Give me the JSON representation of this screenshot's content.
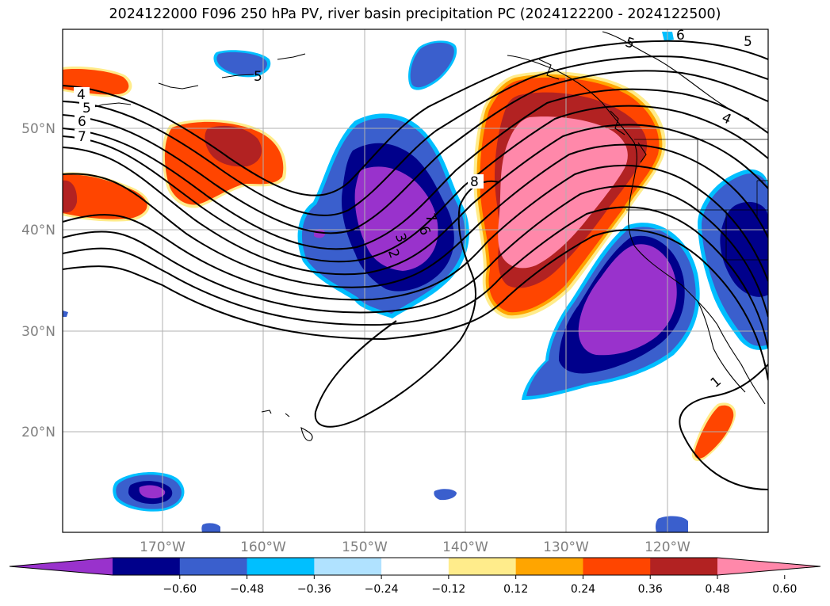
{
  "title": "2024122000 F096 250 hPa PV, river basin precipitation PC (2024122200 - 2024122500)",
  "map": {
    "lat_labels": [
      "50°N",
      "40°N",
      "30°N",
      "20°N"
    ],
    "lon_labels": [
      "170°W",
      "160°W",
      "150°W",
      "140°W",
      "130°W",
      "120°W"
    ],
    "contour_labels": [
      "4",
      "5",
      "6",
      "7",
      "8",
      "7",
      "6",
      "3",
      "2",
      "5",
      "6",
      "4",
      "1",
      "5",
      "5"
    ]
  },
  "colorbar": {
    "colors": [
      "#9932cc",
      "#00008b",
      "#3a5fcd",
      "#00bfff",
      "#b0e2ff",
      "#ffffff",
      "#ffec8b",
      "#ffa500",
      "#ff4500",
      "#b22222",
      "#ff88aa"
    ],
    "ticks": [
      "−0.60",
      "−0.48",
      "−0.36",
      "−0.24",
      "−0.12",
      "0.12",
      "0.24",
      "0.36",
      "0.48",
      "0.60"
    ]
  }
}
